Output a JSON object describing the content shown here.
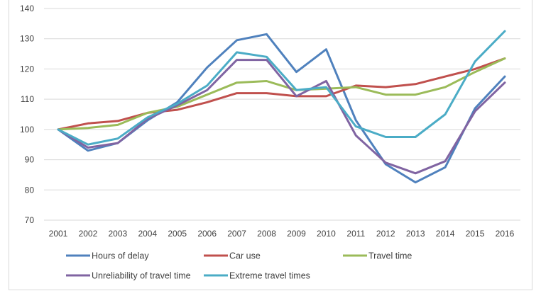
{
  "chart_data": {
    "type": "line",
    "title": "",
    "xlabel": "",
    "ylabel": "",
    "ylim": [
      70,
      140
    ],
    "yticks": [
      70,
      80,
      90,
      100,
      110,
      120,
      130,
      140
    ],
    "grid": "horizontal",
    "legend_position": "bottom",
    "categories": [
      "2001",
      "2002",
      "2003",
      "2004",
      "2005",
      "2006",
      "2007",
      "2008",
      "2009",
      "2010",
      "2011",
      "2012",
      "2013",
      "2014",
      "2015",
      "2016"
    ],
    "series": [
      {
        "name": "Hours of delay",
        "color": "#4f81bd",
        "values": [
          100,
          93,
          95.5,
          103,
          109,
          120.5,
          129.5,
          131.5,
          119,
          126.5,
          103,
          88.5,
          82.5,
          87.5,
          107,
          117.5
        ]
      },
      {
        "name": "Car use",
        "color": "#c0504d",
        "values": [
          100,
          102,
          102.8,
          105.5,
          106.5,
          109,
          112,
          112,
          111,
          111,
          114.5,
          114,
          115,
          117.5,
          120,
          123.5
        ]
      },
      {
        "name": "Travel time",
        "color": "#9bbb59",
        "values": [
          100,
          100.5,
          101.5,
          105.5,
          107.5,
          111.5,
          115.5,
          116,
          113,
          113.5,
          114,
          111.5,
          111.5,
          114,
          119,
          123.5
        ]
      },
      {
        "name": "Unreliability of travel time",
        "color": "#8064a2",
        "values": [
          100,
          94,
          95.5,
          103.5,
          108,
          113,
          123,
          123,
          111,
          116,
          98,
          89,
          85.5,
          89.5,
          106,
          115.5
        ]
      },
      {
        "name": "Extreme travel times",
        "color": "#4bacc6",
        "values": [
          100,
          95,
          97,
          104,
          108.5,
          114.5,
          125.5,
          124,
          113,
          114,
          101,
          97.5,
          97.5,
          105,
          122.5,
          132.5
        ]
      }
    ]
  }
}
